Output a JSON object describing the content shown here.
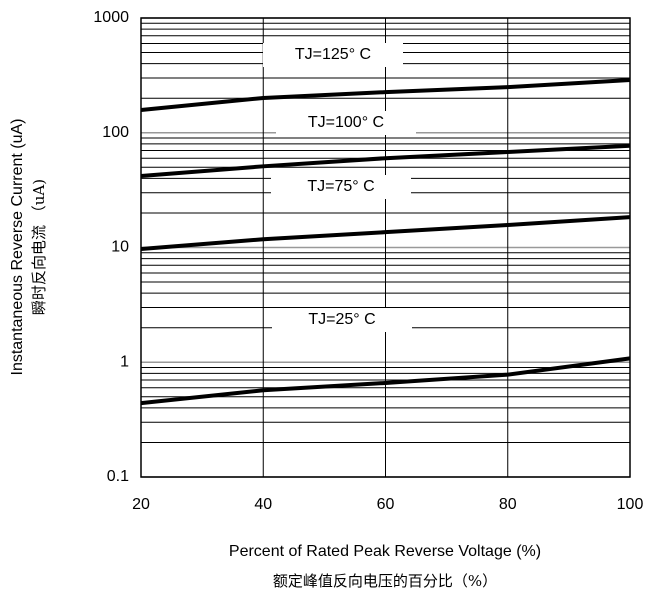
{
  "chart_data": {
    "type": "line",
    "y_label": "Instantaneous Reverse Current (uA)",
    "y_label_cn": "瞬时反向电流 （uA)",
    "x_label": "Percent of Rated Peak Reverse Voltage (%)",
    "x_label_cn": "额定峰值反向电压的百分比（%）",
    "x": [
      20,
      40,
      60,
      80,
      100
    ],
    "xlim": [
      20,
      100
    ],
    "xticks": [
      20,
      40,
      60,
      80,
      100
    ],
    "ylim": [
      0.1,
      1000
    ],
    "yticks": [
      0.1,
      1,
      10,
      100,
      1000
    ],
    "log_y": true,
    "grid": true,
    "series": [
      {
        "name": "TJ=125° C",
        "color": "#000000",
        "values": [
          158,
          201,
          226,
          250,
          288
        ]
      },
      {
        "name": "TJ=100° C",
        "color": "#000000",
        "values": [
          42,
          51,
          60,
          68,
          77
        ]
      },
      {
        "name": "TJ=75° C",
        "color": "#000000",
        "values": [
          9.7,
          11.8,
          13.6,
          15.7,
          18.4
        ]
      },
      {
        "name": "TJ=25° C",
        "color": "#000000",
        "values": [
          0.44,
          0.57,
          0.66,
          0.78,
          1.08
        ]
      }
    ]
  }
}
